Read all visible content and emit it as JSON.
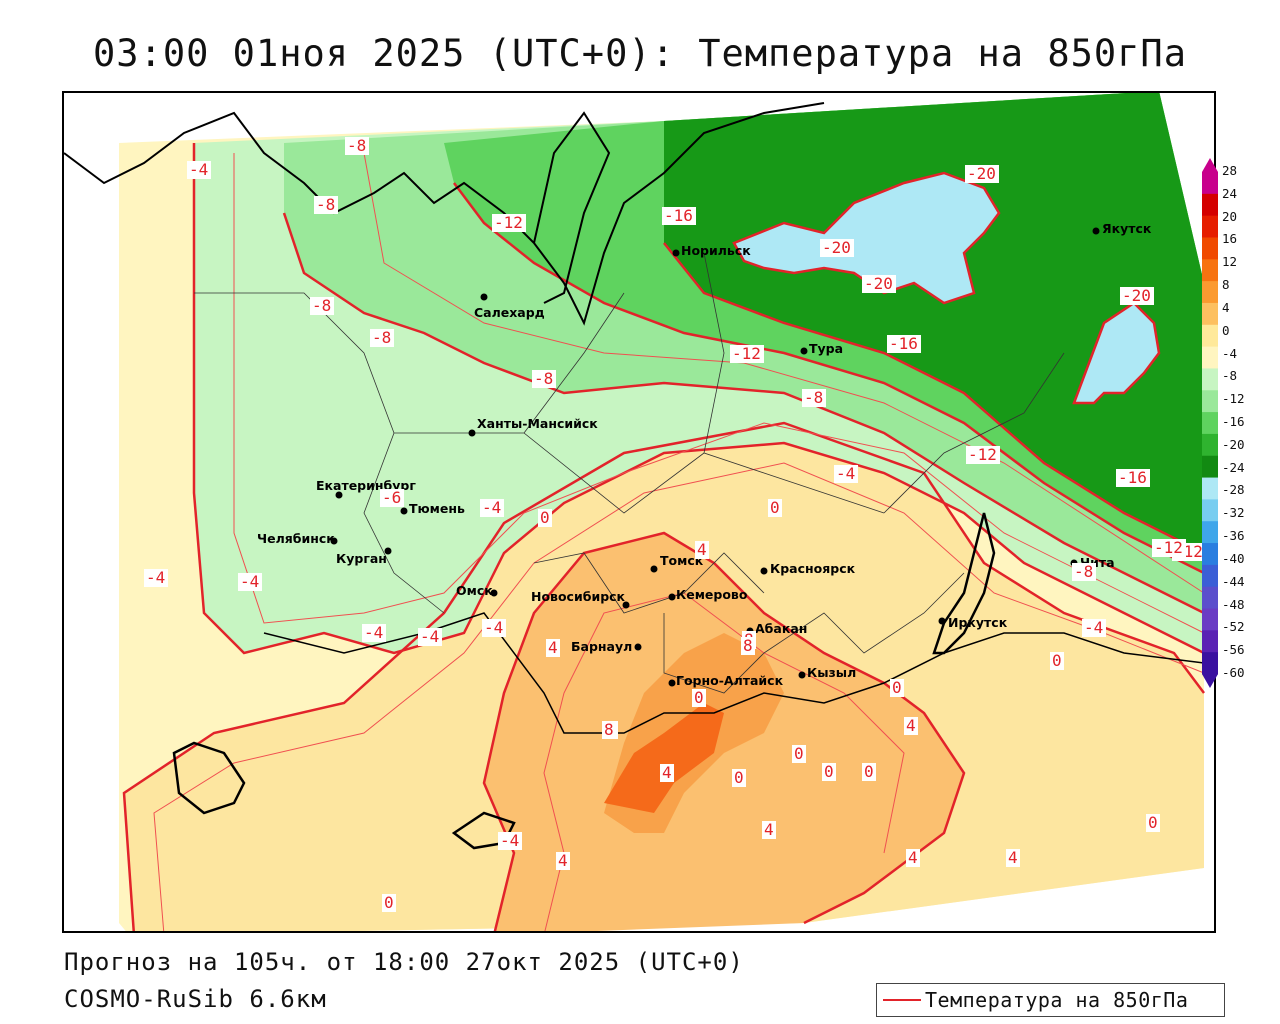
{
  "header": {
    "title": "03:00 01ноя 2025 (UTC+0): Температура на 850гПа"
  },
  "footer": {
    "forecast_text": "Прогноз на 105ч. от 18:00 27окт 2025 (UTC+0)",
    "model_text": "COSMO-RuSib 6.6км"
  },
  "legend": {
    "label": "Температура на 850гПа",
    "line_color": "#e2232a"
  },
  "colorbar": {
    "labels": [
      "28",
      "24",
      "20",
      "16",
      "12",
      "8",
      "4",
      "0",
      "-4",
      "-8",
      "-12",
      "-16",
      "-20",
      "-24",
      "-28",
      "-32",
      "-36",
      "-40",
      "-44",
      "-48",
      "-52",
      "-56",
      "-60"
    ],
    "colors": [
      "#c8008c",
      "#d40000",
      "#e61e00",
      "#f04a00",
      "#f77310",
      "#fb9a30",
      "#fdc060",
      "#ffe99a",
      "#fff5c0",
      "#c7f5c2",
      "#9ae89a",
      "#5fd35f",
      "#2fb32f",
      "#128a12",
      "#aee8f5",
      "#78cdf0",
      "#3fa6ea",
      "#2a7ee0",
      "#3b5fd6",
      "#5b4fcc",
      "#6a3cc4",
      "#5a22b4",
      "#3a10a0"
    ]
  },
  "cities": [
    {
      "name": "Норильск"
    },
    {
      "name": "Якутск"
    },
    {
      "name": "Салехард"
    },
    {
      "name": "Тура"
    },
    {
      "name": "Ханты-Мансийск"
    },
    {
      "name": "Екатеринбург"
    },
    {
      "name": "Тюмень"
    },
    {
      "name": "Челябинск"
    },
    {
      "name": "Курган"
    },
    {
      "name": "Омск"
    },
    {
      "name": "Томск"
    },
    {
      "name": "Красноярск"
    },
    {
      "name": "Новосибирск"
    },
    {
      "name": "Кемерово"
    },
    {
      "name": "Абакан"
    },
    {
      "name": "Иркутск"
    },
    {
      "name": "Барнаул"
    },
    {
      "name": "Горно-Алтайск"
    },
    {
      "name": "Кызыл"
    },
    {
      "name": "Чита"
    }
  ],
  "isoline_labels": [
    "-4",
    "-8",
    "-8",
    "-12",
    "-8",
    "-8",
    "-8",
    "-16",
    "-20",
    "-20",
    "-20",
    "-20",
    "-12",
    "-16",
    "-8",
    "-12",
    "-16",
    "-4",
    "-12",
    "-6",
    "-4",
    "0",
    "0",
    "4",
    "-4",
    "-4",
    "-4",
    "-4",
    "-8",
    "-4",
    "4",
    "8",
    "4",
    "8",
    "0",
    "0",
    "0",
    "0",
    "0",
    "0",
    "4",
    "4",
    "4",
    "4",
    "0",
    "0",
    "0",
    "-4",
    "-4",
    "-12",
    "-4",
    "8",
    "4",
    "4"
  ]
}
